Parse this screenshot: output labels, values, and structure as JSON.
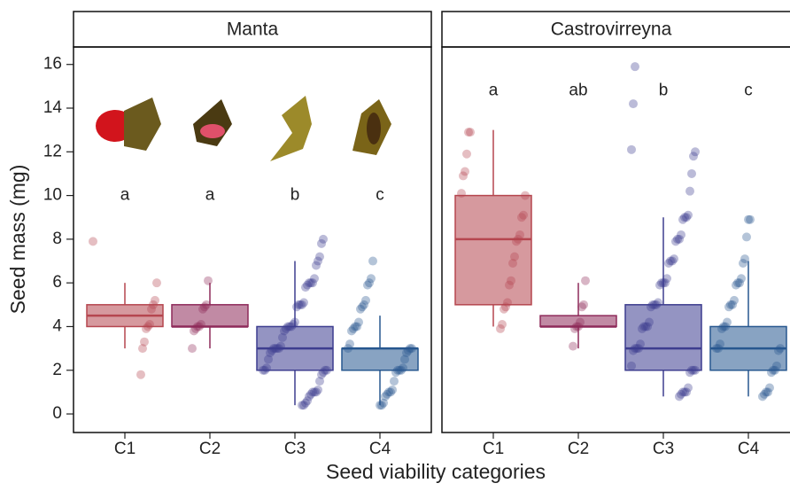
{
  "chart_data": {
    "type": "boxplot",
    "y_label": "Seed mass (mg)",
    "x_label": "Seed viability categories",
    "ylim": [
      -0.85,
      16.8
    ],
    "yticks": [
      0,
      2,
      4,
      6,
      8,
      10,
      12,
      14,
      16
    ],
    "categories": [
      "C1",
      "C2",
      "C3",
      "C4"
    ],
    "colors": [
      "#b5464f",
      "#8e2a5a",
      "#3d3d8f",
      "#27578f"
    ],
    "facets": [
      {
        "title": "Manta",
        "letters": [
          "a",
          "a",
          "b",
          "c"
        ],
        "letter_y": 10,
        "boxes": [
          {
            "min": 3,
            "q1": 4,
            "median": 4.5,
            "q3": 5,
            "max": 6,
            "points": [
              7.9,
              6,
              5.2,
              5,
              4.8,
              4.1,
              4,
              3.9,
              3.3,
              3,
              1.8
            ]
          },
          {
            "min": 3,
            "q1": 4,
            "median": 4,
            "q3": 5,
            "max": 6,
            "points": [
              6.1,
              5,
              4.9,
              4.8,
              4.1,
              4,
              4,
              3.9,
              3.8,
              3
            ]
          },
          {
            "min": 0.4,
            "q1": 2,
            "median": 3,
            "q3": 4,
            "max": 7,
            "points": [
              8,
              7.8,
              7.2,
              7,
              6.8,
              6.2,
              6,
              6,
              6,
              5.9,
              5.8,
              5.1,
              5,
              5,
              5,
              4.9,
              4.2,
              4.1,
              4,
              4,
              4,
              3.9,
              3.8,
              3.5,
              3.1,
              3,
              3,
              3,
              3,
              2.9,
              2.8,
              2.5,
              2.1,
              2,
              2,
              2,
              2,
              1.9,
              1.8,
              1.5,
              1.1,
              1,
              1,
              1,
              0.9,
              0.8,
              0.6,
              0.5,
              0.4,
              0.4
            ]
          },
          {
            "min": 0.4,
            "q1": 2,
            "median": 3,
            "q3": 3,
            "max": 4.5,
            "points": [
              7,
              6.2,
              6,
              5.9,
              5.2,
              5,
              4.9,
              4.8,
              4.2,
              4,
              4,
              3.9,
              3.8,
              3.2,
              3,
              3,
              3,
              2.9,
              2.8,
              2.5,
              2.1,
              2,
              2,
              2,
              1.9,
              1.5,
              1.1,
              1,
              1,
              0.9,
              0.8,
              0.5,
              0.4,
              0.4
            ]
          }
        ]
      },
      {
        "title": "Castrovirreyna",
        "letters": [
          "a",
          "ab",
          "b",
          "c"
        ],
        "letter_y": 14.8,
        "boxes": [
          {
            "min": 4,
            "q1": 5,
            "median": 8,
            "q3": 10,
            "max": 13,
            "points": [
              12.9,
              12.9,
              11.9,
              11.1,
              10.9,
              10.1,
              10,
              9.1,
              9,
              8.2,
              8,
              7.9,
              7.2,
              6.9,
              6.1,
              5.9,
              5.1,
              4.9,
              4.8,
              4.1,
              3.9
            ]
          },
          {
            "min": 3,
            "q1": 4,
            "median": 4,
            "q3": 4.5,
            "max": 6,
            "points": [
              6.1,
              5,
              4.9,
              4.2,
              4,
              4,
              3.9,
              3.1
            ]
          },
          {
            "min": 0.8,
            "q1": 2,
            "median": 3,
            "q3": 5,
            "max": 9,
            "points": [
              15.9,
              14.2,
              12.1,
              12,
              11.8,
              11,
              10.2,
              9.1,
              9,
              9,
              8.9,
              8.2,
              8,
              8,
              7.9,
              7.1,
              7,
              7,
              6.9,
              6.2,
              6,
              6,
              6,
              5.9,
              5.1,
              5,
              5,
              5,
              4.9,
              4.2,
              4,
              4,
              4,
              3.9,
              3.2,
              3,
              3,
              3,
              2.9,
              2.2,
              2,
              2,
              2,
              1.9,
              1.2,
              1,
              1,
              1,
              0.9,
              0.8
            ]
          },
          {
            "min": 0.8,
            "q1": 2,
            "median": 3,
            "q3": 4,
            "max": 7,
            "points": [
              8.9,
              8.9,
              8.1,
              7.1,
              6.9,
              6.2,
              6,
              6,
              5.9,
              5.2,
              5,
              5,
              4.9,
              4.2,
              4,
              4,
              3.9,
              3.2,
              3,
              3,
              3,
              2.9,
              2.2,
              2,
              2,
              1.9,
              1.2,
              1,
              1,
              0.9,
              0.8
            ]
          }
        ]
      }
    ]
  }
}
